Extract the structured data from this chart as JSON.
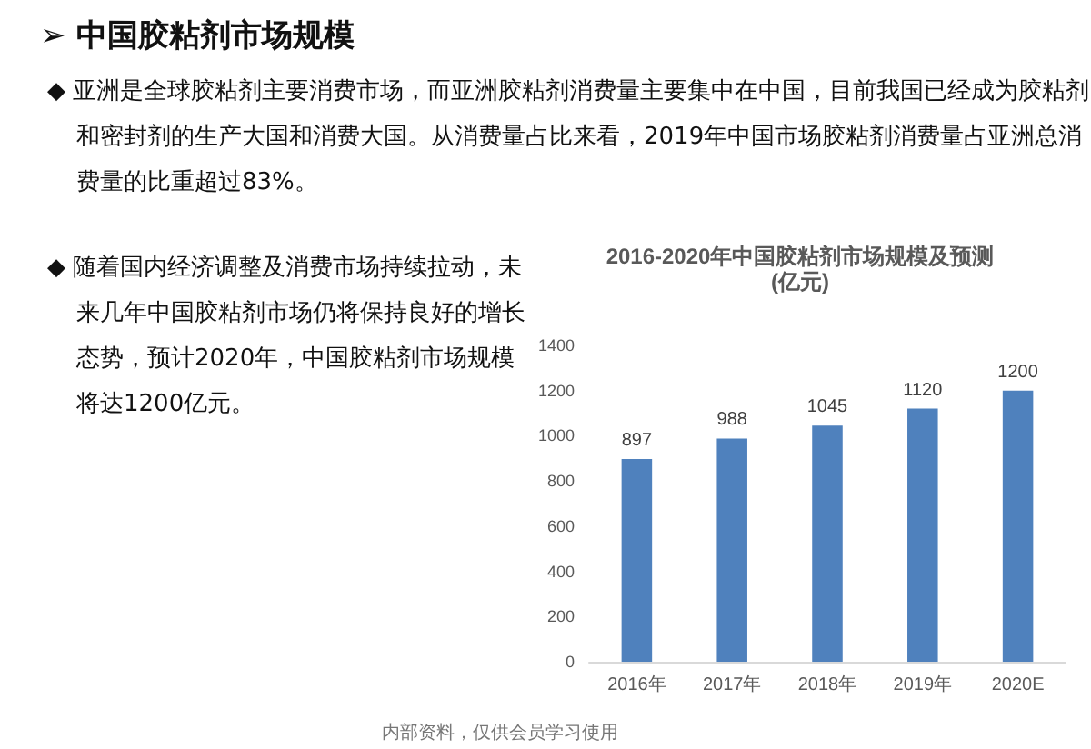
{
  "chart_data": {
    "type": "bar",
    "title": "2016-2020年中国胶粘剂市场规模及预测",
    "subtitle": "(亿元)",
    "categories": [
      "2016年",
      "2017年",
      "2018年",
      "2019年",
      "2020E"
    ],
    "values": [
      897,
      988,
      1045,
      1120,
      1200
    ],
    "color": "#4f81bd",
    "ylim": [
      0,
      1400
    ],
    "yticks": [
      0,
      200,
      400,
      600,
      800,
      1000,
      1200,
      1400
    ],
    "grid": false,
    "data_labels": true,
    "annotations": [
      "➢ 中国胶粘剂市场规模",
      "◆ 亚洲是全球胶粘剂主要消费市场，而亚洲胶粘剂消费量主要集中在中国，目前我国已经成为胶粘剂和密封剂的生产大国和消费大国。从消费量占比来看，2019年中国市场胶粘剂消费量占亚洲总消费量的比重超过83%。",
      "◆ 随着国内经济调整及消费市场持续拉动，未来几年中国胶粘剂市场仍将保持良好的增长态势，预计2020年，中国胶粘剂市场规模将达1200亿元。",
      "内部资料，仅供会员学习使用"
    ]
  }
}
